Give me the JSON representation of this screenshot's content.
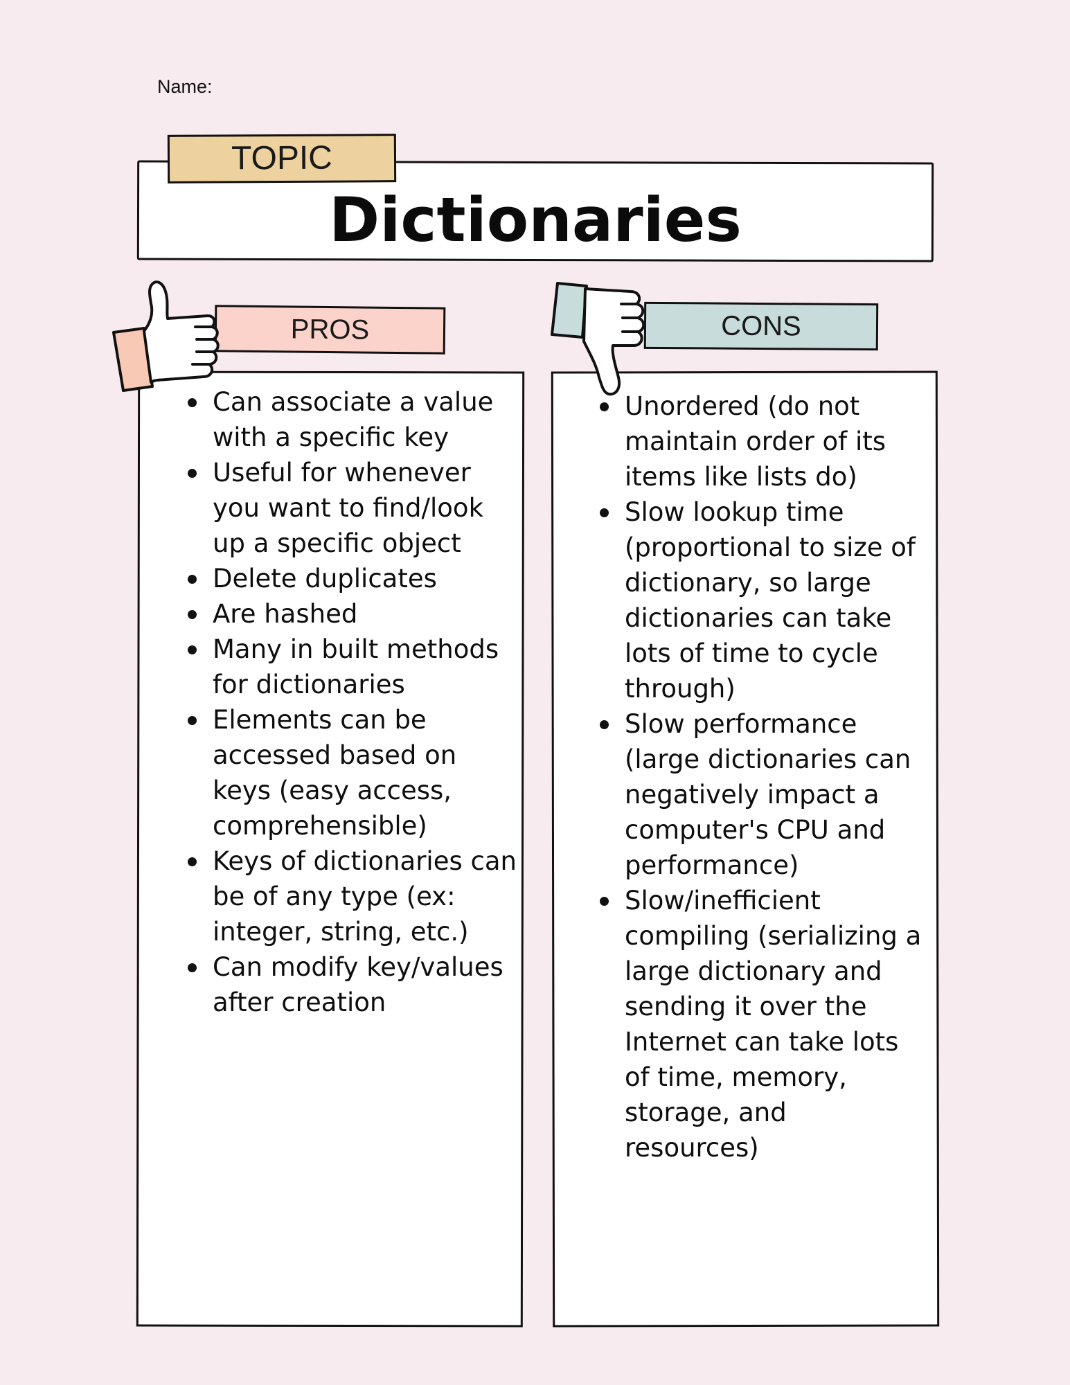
{
  "header": {
    "name_label": "Name:"
  },
  "topic": {
    "tab_label": "TOPIC",
    "title": "Dictionaries"
  },
  "pros": {
    "label": "PROS",
    "items": [
      "Can associate a value with a specific key",
      "Useful for whenever you want to find/look up a specific object",
      "Delete duplicates",
      "Are hashed",
      "Many in built methods for dictionaries",
      "Elements can be accessed based on keys (easy access, comprehensible)",
      "Keys of dictionaries can be of any type (ex: integer, string, etc.)",
      "Can modify key/values after creation"
    ]
  },
  "cons": {
    "label": "CONS",
    "items": [
      "Unordered (do not maintain order of its items like lists do)",
      "Slow lookup time (proportional to size of dictionary, so large dictionaries can take lots of time to cycle through)",
      "Slow performance (large dictionaries can negatively impact a computer's CPU and performance)",
      "Slow/inefficient compiling (serializing a large dictionary and sending it over the Internet can take lots of time, memory, storage, and resources)"
    ]
  },
  "icons": {
    "pros": "thumbs-up-icon",
    "cons": "thumbs-down-icon"
  },
  "colors": {
    "background": "#f8ebef",
    "topic_tab": "#edd19e",
    "pros_tab": "#fcd3cb",
    "cons_tab": "#c8dcdb",
    "thumb_up_cuff": "#f8c9b5",
    "thumb_down_cuff": "#c8dcdb"
  }
}
